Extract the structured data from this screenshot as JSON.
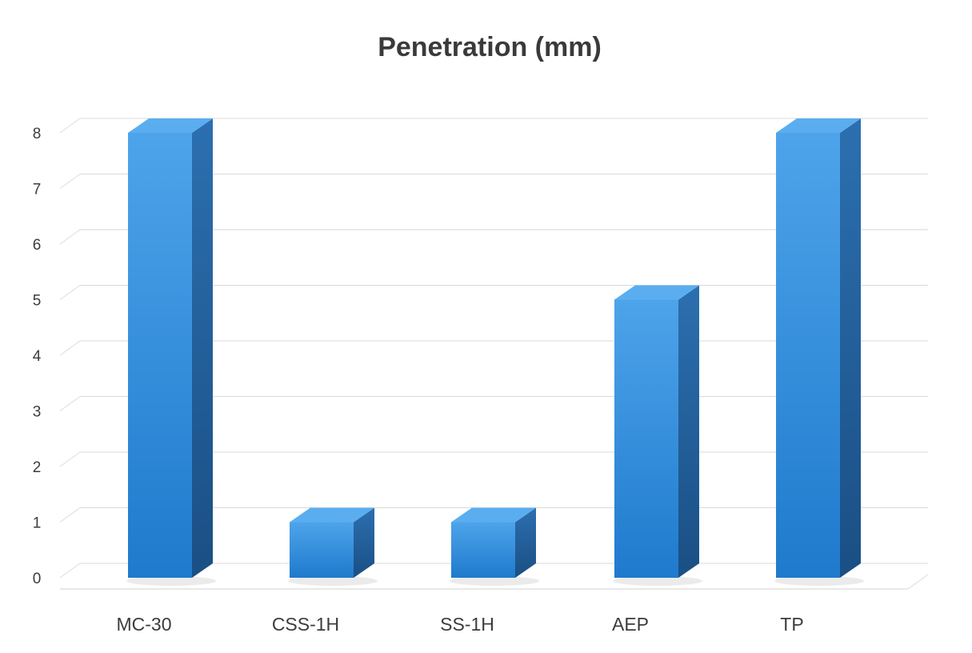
{
  "chart_data": {
    "type": "bar",
    "title": "Penetration (mm)",
    "categories": [
      "MC-30",
      "CSS-1H",
      "SS-1H",
      "AEP",
      "TP"
    ],
    "values": [
      8,
      1,
      1,
      5,
      8
    ],
    "xlabel": "",
    "ylabel": "",
    "ylim": [
      0,
      8
    ],
    "yticks": [
      0,
      1,
      2,
      3,
      4,
      5,
      6,
      7,
      8
    ],
    "grid": true,
    "legend": "none",
    "style": "3d-column",
    "colors": {
      "bar_front": "#2b86d8",
      "bar_side": "#1f5f9d",
      "bar_top": "#5aaef0",
      "grid": "#d9d9d9"
    }
  }
}
